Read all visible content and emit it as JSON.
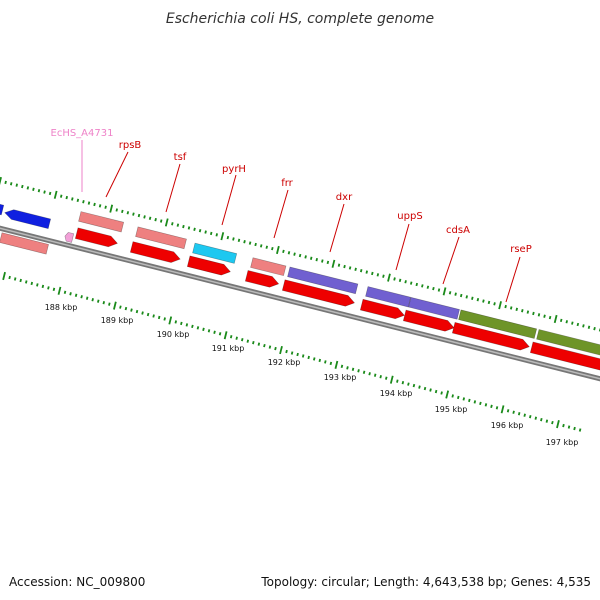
{
  "title": "Escherichia coli HS, complete genome",
  "footer": {
    "accession": "Accession: NC_009800",
    "summary": "Topology: circular; Length: 4,643,538 bp; Genes: 4,535"
  },
  "gene_labels": [
    {
      "text": "EcHS_A4731",
      "color": "pink"
    },
    {
      "text": "rpsB",
      "color": "red"
    },
    {
      "text": "tsf",
      "color": "red"
    },
    {
      "text": "pyrH",
      "color": "red"
    },
    {
      "text": "frr",
      "color": "red"
    },
    {
      "text": "dxr",
      "color": "red"
    },
    {
      "text": "uppS",
      "color": "red"
    },
    {
      "text": "cdsA",
      "color": "red"
    },
    {
      "text": "rseP",
      "color": "red"
    }
  ],
  "tick_labels": [
    "188 kbp",
    "189 kbp",
    "190 kbp",
    "191 kbp",
    "192 kbp",
    "193 kbp",
    "194 kbp",
    "195 kbp",
    "196 kbp",
    "197 kbp"
  ],
  "colors": {
    "cds": "#ee0000",
    "gene_pink": "#ee8080",
    "cyan": "#1ec8f0",
    "purple": "#7060d0",
    "olive": "#6e9428",
    "blue": "#1020e0",
    "backbone": "#888888",
    "ticks": "#1a8a1a"
  }
}
